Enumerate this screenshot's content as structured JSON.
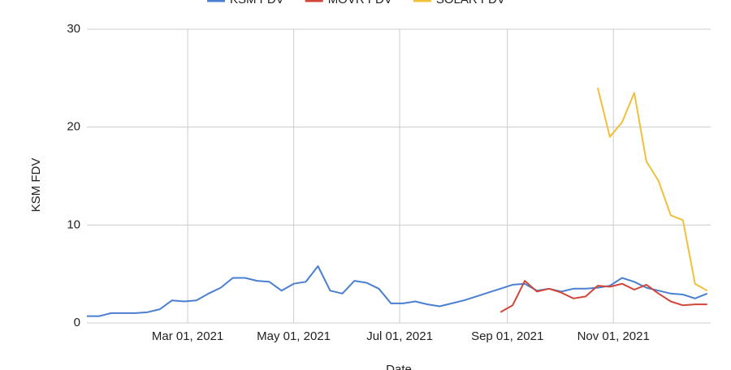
{
  "chart_data": {
    "type": "line",
    "x_label": "Date",
    "y_label": "KSM FDV",
    "x": [
      "2021-01-02",
      "2021-01-09",
      "2021-01-16",
      "2021-01-23",
      "2021-01-30",
      "2021-02-06",
      "2021-02-13",
      "2021-02-20",
      "2021-02-27",
      "2021-03-06",
      "2021-03-13",
      "2021-03-20",
      "2021-03-27",
      "2021-04-03",
      "2021-04-10",
      "2021-04-17",
      "2021-04-24",
      "2021-05-01",
      "2021-05-08",
      "2021-05-15",
      "2021-05-22",
      "2021-05-29",
      "2021-06-05",
      "2021-06-12",
      "2021-06-19",
      "2021-06-26",
      "2021-07-03",
      "2021-07-10",
      "2021-07-17",
      "2021-07-24",
      "2021-07-31",
      "2021-08-07",
      "2021-08-14",
      "2021-08-21",
      "2021-08-28",
      "2021-09-04",
      "2021-09-11",
      "2021-09-18",
      "2021-09-25",
      "2021-10-02",
      "2021-10-09",
      "2021-10-16",
      "2021-10-23",
      "2021-10-30",
      "2021-11-06",
      "2021-11-13",
      "2021-11-20",
      "2021-11-27",
      "2021-12-04",
      "2021-12-11",
      "2021-12-18",
      "2021-12-25"
    ],
    "series": [
      {
        "name": "KSM FDV",
        "color": "#4a7fd1",
        "values": [
          0.7,
          0.7,
          1.0,
          1.0,
          1.0,
          1.1,
          1.4,
          2.3,
          2.2,
          2.3,
          3.0,
          3.6,
          4.6,
          4.6,
          4.3,
          4.2,
          3.3,
          4.0,
          4.2,
          5.8,
          3.3,
          3.0,
          4.3,
          4.1,
          3.5,
          2.0,
          2.0,
          2.2,
          1.9,
          1.7,
          2.0,
          2.3,
          2.7,
          3.1,
          3.5,
          3.9,
          4.0,
          3.3,
          3.5,
          3.2,
          3.5,
          3.5,
          3.6,
          3.8,
          4.6,
          4.2,
          3.6,
          3.3,
          3.0,
          2.9,
          2.5,
          3.0
        ]
      },
      {
        "name": "MOVR FDV",
        "color": "#d2463a",
        "values": [
          null,
          null,
          null,
          null,
          null,
          null,
          null,
          null,
          null,
          null,
          null,
          null,
          null,
          null,
          null,
          null,
          null,
          null,
          null,
          null,
          null,
          null,
          null,
          null,
          null,
          null,
          null,
          null,
          null,
          null,
          null,
          null,
          null,
          null,
          1.1,
          1.8,
          4.3,
          3.2,
          3.5,
          3.1,
          2.5,
          2.7,
          3.8,
          3.7,
          4.0,
          3.4,
          3.9,
          3.0,
          2.2,
          1.8,
          1.9,
          1.9
        ]
      },
      {
        "name": "SOLAR FDV",
        "color": "#f0c03b",
        "values": [
          null,
          null,
          null,
          null,
          null,
          null,
          null,
          null,
          null,
          null,
          null,
          null,
          null,
          null,
          null,
          null,
          null,
          null,
          null,
          null,
          null,
          null,
          null,
          null,
          null,
          null,
          null,
          null,
          null,
          null,
          null,
          null,
          null,
          null,
          null,
          null,
          null,
          null,
          null,
          null,
          null,
          null,
          24.0,
          19.0,
          20.5,
          23.5,
          16.5,
          14.5,
          11.0,
          10.5,
          4.0,
          3.3
        ]
      }
    ],
    "xlim": [
      "2021-01-02",
      "2021-12-27"
    ],
    "xticks": [
      {
        "value": "2021-03-01",
        "label": "Mar 01, 2021"
      },
      {
        "value": "2021-05-01",
        "label": "May 01, 2021"
      },
      {
        "value": "2021-07-01",
        "label": "Jul 01, 2021"
      },
      {
        "value": "2021-09-01",
        "label": "Sep 01, 2021"
      },
      {
        "value": "2021-11-01",
        "label": "Nov 01, 2021"
      }
    ],
    "ylim": [
      0,
      30
    ],
    "yticks": [
      0,
      10,
      20,
      30
    ],
    "grid": true,
    "legend": "top"
  }
}
